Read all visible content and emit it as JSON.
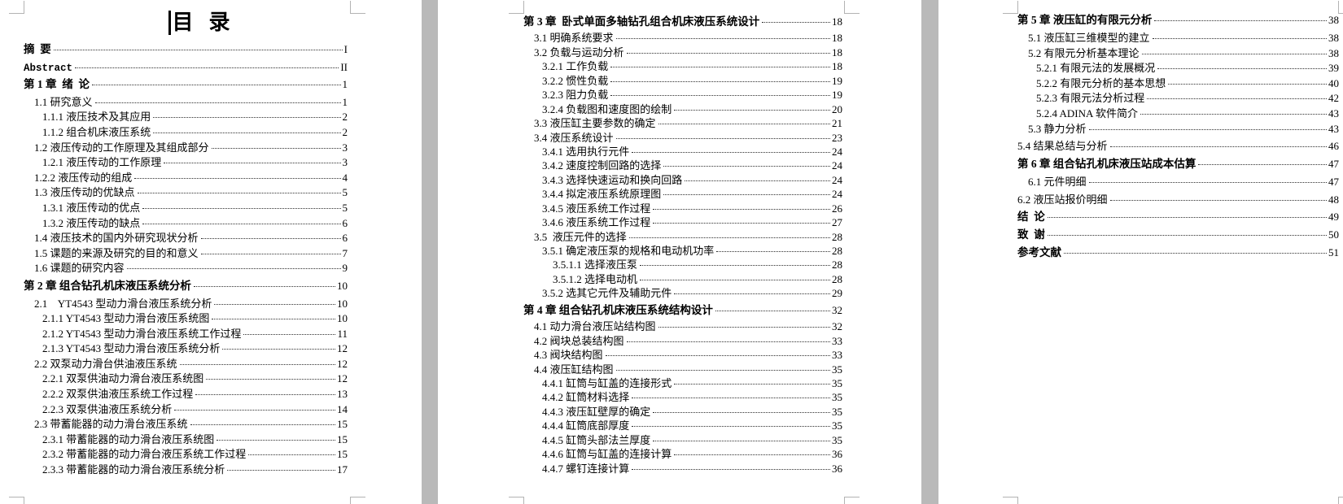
{
  "title": "目  录",
  "colors": {
    "canvas_background": "#b9b9b9",
    "page_background": "#ffffff",
    "text": "#000000",
    "crop_mark": "#b3b3b3"
  },
  "pages": [
    {
      "name": "page-1",
      "entries": [
        {
          "text": "摘  要",
          "page": "I",
          "lv": 0,
          "b": true,
          "sp": true
        },
        {
          "text": "Abstract",
          "page": "II",
          "lv": 0,
          "b": true,
          "sp": true,
          "mono": true
        },
        {
          "text": "第 1 章  绪  论",
          "page": "1",
          "lv": 0,
          "b": true,
          "sp": true
        },
        {
          "text": "1.1 研究意义",
          "page": "1",
          "lv": 1
        },
        {
          "text": "1.1.1 液压技术及其应用",
          "page": "2",
          "lv": 2
        },
        {
          "text": "1.1.2 组合机床液压系统",
          "page": "2",
          "lv": 2
        },
        {
          "text": "1.2 液压传动的工作原理及其组成部分",
          "page": "3",
          "lv": 1
        },
        {
          "text": "1.2.1 液压传动的工作原理",
          "page": "3",
          "lv": 2
        },
        {
          "text": "1.2.2 液压传动的组成",
          "page": "4",
          "lv": 1
        },
        {
          "text": "1.3 液压传动的优缺点",
          "page": "5",
          "lv": 1
        },
        {
          "text": "1.3.1 液压传动的优点",
          "page": "5",
          "lv": 2
        },
        {
          "text": "1.3.2 液压传动的缺点",
          "page": "6",
          "lv": 2
        },
        {
          "text": "1.4 液压技术的国内外研究现状分析",
          "page": "6",
          "lv": 1
        },
        {
          "text": "1.5 课题的来源及研究的目的和意义",
          "page": "7",
          "lv": 1
        },
        {
          "text": "1.6 课题的研究内容",
          "page": "9",
          "lv": 1
        },
        {
          "text": "第 2 章 组合钻孔机床液压系统分析",
          "page": "10",
          "lv": 0,
          "b": true,
          "sp": true
        },
        {
          "text": "2.1    YT4543 型动力滑台液压系统分析",
          "page": "10",
          "lv": 1
        },
        {
          "text": "2.1.1 YT4543 型动力滑台液压系统图",
          "page": "10",
          "lv": 2
        },
        {
          "text": "2.1.2 YT4543 型动力滑台液压系统工作过程",
          "page": "11",
          "lv": 2
        },
        {
          "text": "2.1.3 YT4543 型动力滑台液压系统分析",
          "page": "12",
          "lv": 2
        },
        {
          "text": "2.2 双泵动力滑台供油液压系统",
          "page": "12",
          "lv": 1
        },
        {
          "text": "2.2.1 双泵供油动力滑台液压系统图",
          "page": "12",
          "lv": 2
        },
        {
          "text": "2.2.2 双泵供油液压系统工作过程",
          "page": "13",
          "lv": 2
        },
        {
          "text": "2.2.3 双泵供油液压系统分析",
          "page": "14",
          "lv": 2
        },
        {
          "text": "2.3 带蓄能器的动力滑台液压系统",
          "page": "15",
          "lv": 1
        },
        {
          "text": "2.3.1 带蓄能器的动力滑台液压系统图",
          "page": "15",
          "lv": 2
        },
        {
          "text": "2.3.2 带蓄能器的动力滑台液压系统工作过程",
          "page": "15",
          "lv": 2
        },
        {
          "text": "2.3.3 带蓄能器的动力滑台液压系统分析",
          "page": "17",
          "lv": 2
        }
      ]
    },
    {
      "name": "page-2",
      "entries": [
        {
          "text": "第 3 章  卧式单面多轴钻孔组合机床液压系统设计",
          "page": "18",
          "lv": 0,
          "b": true,
          "sp": true
        },
        {
          "text": "3.1 明确系统要求",
          "page": "18",
          "lv": 1
        },
        {
          "text": "3.2 负载与运动分析",
          "page": "18",
          "lv": 1
        },
        {
          "text": "3.2.1 工作负载",
          "page": "18",
          "lv": 2
        },
        {
          "text": "3.2.2 惯性负载",
          "page": "19",
          "lv": 2
        },
        {
          "text": "3.2.3 阻力负载",
          "page": "19",
          "lv": 2
        },
        {
          "text": "3.2.4 负载图和速度图的绘制",
          "page": "20",
          "lv": 2
        },
        {
          "text": "3.3 液压缸主要参数的确定",
          "page": "21",
          "lv": 1
        },
        {
          "text": "3.4 液压系统设计",
          "page": "23",
          "lv": 1
        },
        {
          "text": "3.4.1 选用执行元件",
          "page": "24",
          "lv": 2
        },
        {
          "text": "3.4.2 速度控制回路的选择",
          "page": "24",
          "lv": 2
        },
        {
          "text": "3.4.3 选择快速运动和换向回路",
          "page": "24",
          "lv": 2
        },
        {
          "text": "3.4.4 拟定液压系统原理图",
          "page": "24",
          "lv": 2
        },
        {
          "text": "3.4.5 液压系统工作过程",
          "page": "26",
          "lv": 2
        },
        {
          "text": "3.4.6 液压系统工作过程",
          "page": "27",
          "lv": 2
        },
        {
          "text": "3.5  液压元件的选择",
          "page": "28",
          "lv": 1
        },
        {
          "text": "3.5.1 确定液压泵的规格和电动机功率",
          "page": "28",
          "lv": 2
        },
        {
          "text": "3.5.1.1 选择液压泵",
          "page": "28",
          "lv": 3
        },
        {
          "text": "3.5.1.2 选择电动机",
          "page": "28",
          "lv": 3
        },
        {
          "text": "3.5.2 选其它元件及辅助元件",
          "page": "29",
          "lv": 2
        },
        {
          "text": "第 4 章 组合钻孔机床液压系统结构设计",
          "page": "32",
          "lv": 0,
          "b": true,
          "sp": true
        },
        {
          "text": "4.1 动力滑台液压站结构图",
          "page": "32",
          "lv": 1
        },
        {
          "text": "4.2 阀块总装结构图",
          "page": "33",
          "lv": 1
        },
        {
          "text": "4.3 阀块结构图",
          "page": "33",
          "lv": 1
        },
        {
          "text": "4.4 液压缸结构图",
          "page": "35",
          "lv": 1
        },
        {
          "text": "4.4.1 缸筒与缸盖的连接形式",
          "page": "35",
          "lv": 2
        },
        {
          "text": "4.4.2 缸筒材料选择",
          "page": "35",
          "lv": 2
        },
        {
          "text": "4.4.3 液压缸壁厚的确定",
          "page": "35",
          "lv": 2
        },
        {
          "text": "4.4.4 缸筒底部厚度",
          "page": "35",
          "lv": 2
        },
        {
          "text": "4.4.5 缸筒头部法兰厚度",
          "page": "35",
          "lv": 2
        },
        {
          "text": "4.4.6 缸筒与缸盖的连接计算",
          "page": "36",
          "lv": 2
        },
        {
          "text": "4.4.7 螺钉连接计算",
          "page": "36",
          "lv": 2
        }
      ]
    },
    {
      "name": "page-3",
      "entries": [
        {
          "text": "第 5 章 液压缸的有限元分析",
          "page": "38",
          "lv": 0,
          "b": true,
          "sp": true
        },
        {
          "text": "5.1 液压缸三维模型的建立",
          "page": "38",
          "lv": 1
        },
        {
          "text": "5.2 有限元分析基本理论",
          "page": "38",
          "lv": 1
        },
        {
          "text": "5.2.1 有限元法的发展概况",
          "page": "39",
          "lv": 2
        },
        {
          "text": "5.2.2 有限元分析的基本思想",
          "page": "40",
          "lv": 2
        },
        {
          "text": "5.2.3 有限元法分析过程",
          "page": "42",
          "lv": 2
        },
        {
          "text": "5.2.4 ADINA 软件简介",
          "page": "43",
          "lv": 2
        },
        {
          "text": "5.3 静力分析",
          "page": "43",
          "lv": 1
        },
        {
          "text": "5.4 结果总结与分析",
          "page": "46",
          "lv": 0,
          "sp": true
        },
        {
          "text": "第 6 章 组合钻孔机床液压站成本估算",
          "page": "47",
          "lv": 0,
          "b": true,
          "sp": true
        },
        {
          "text": "6.1 元件明细",
          "page": "47",
          "lv": 1,
          "sp": true
        },
        {
          "text": "6.2 液压站报价明细",
          "page": "48",
          "lv": 0,
          "sp": true
        },
        {
          "text": "结  论",
          "page": "49",
          "lv": 0,
          "b": true,
          "sp": true
        },
        {
          "text": "致  谢",
          "page": "50",
          "lv": 0,
          "b": true,
          "sp": true
        },
        {
          "text": "参考文献",
          "page": "51",
          "lv": 0,
          "b": true,
          "sp": true
        }
      ]
    }
  ]
}
